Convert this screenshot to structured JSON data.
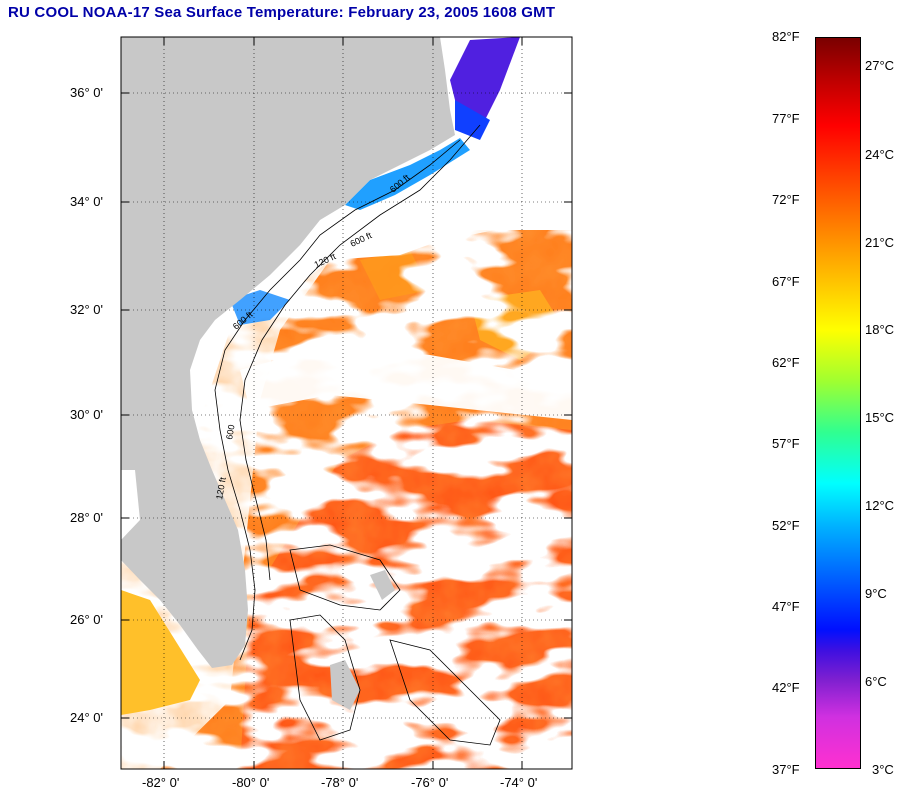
{
  "title": "RU COOL  NOAA-17  Sea Surface Temperature:  February 23, 2005 1608 GMT",
  "map": {
    "lat_labels": [
      "36° 0'",
      "34° 0'",
      "32° 0'",
      "30° 0'",
      "28° 0'",
      "26° 0'",
      "24° 0'"
    ],
    "lon_labels": [
      "-82° 0'",
      "-80° 0'",
      "-78° 0'",
      "-76° 0'",
      "-74° 0'"
    ],
    "lat_range": [
      23,
      37
    ],
    "lon_range": [
      -83,
      -73
    ],
    "contour_labels": [
      "600 ft",
      "120 ft",
      "600 ft",
      "600 ft",
      "600",
      "120 ft"
    ],
    "colors": {
      "land": "#c8c8c8",
      "cloud": "#ffffff",
      "gulf_stream": "#ff4a10",
      "warm_ocean": "#ff8a1a",
      "cold_shelf": "#2080ff"
    }
  },
  "colorbar": {
    "fahrenheit": [
      "82°F",
      "77°F",
      "72°F",
      "67°F",
      "62°F",
      "57°F",
      "52°F",
      "47°F",
      "42°F",
      "37°F"
    ],
    "celsius": [
      "27°C",
      "24°C",
      "21°C",
      "18°C",
      "15°C",
      "12°C",
      "9°C",
      "6°C",
      "3°C"
    ],
    "range_f": [
      37,
      82
    ]
  }
}
